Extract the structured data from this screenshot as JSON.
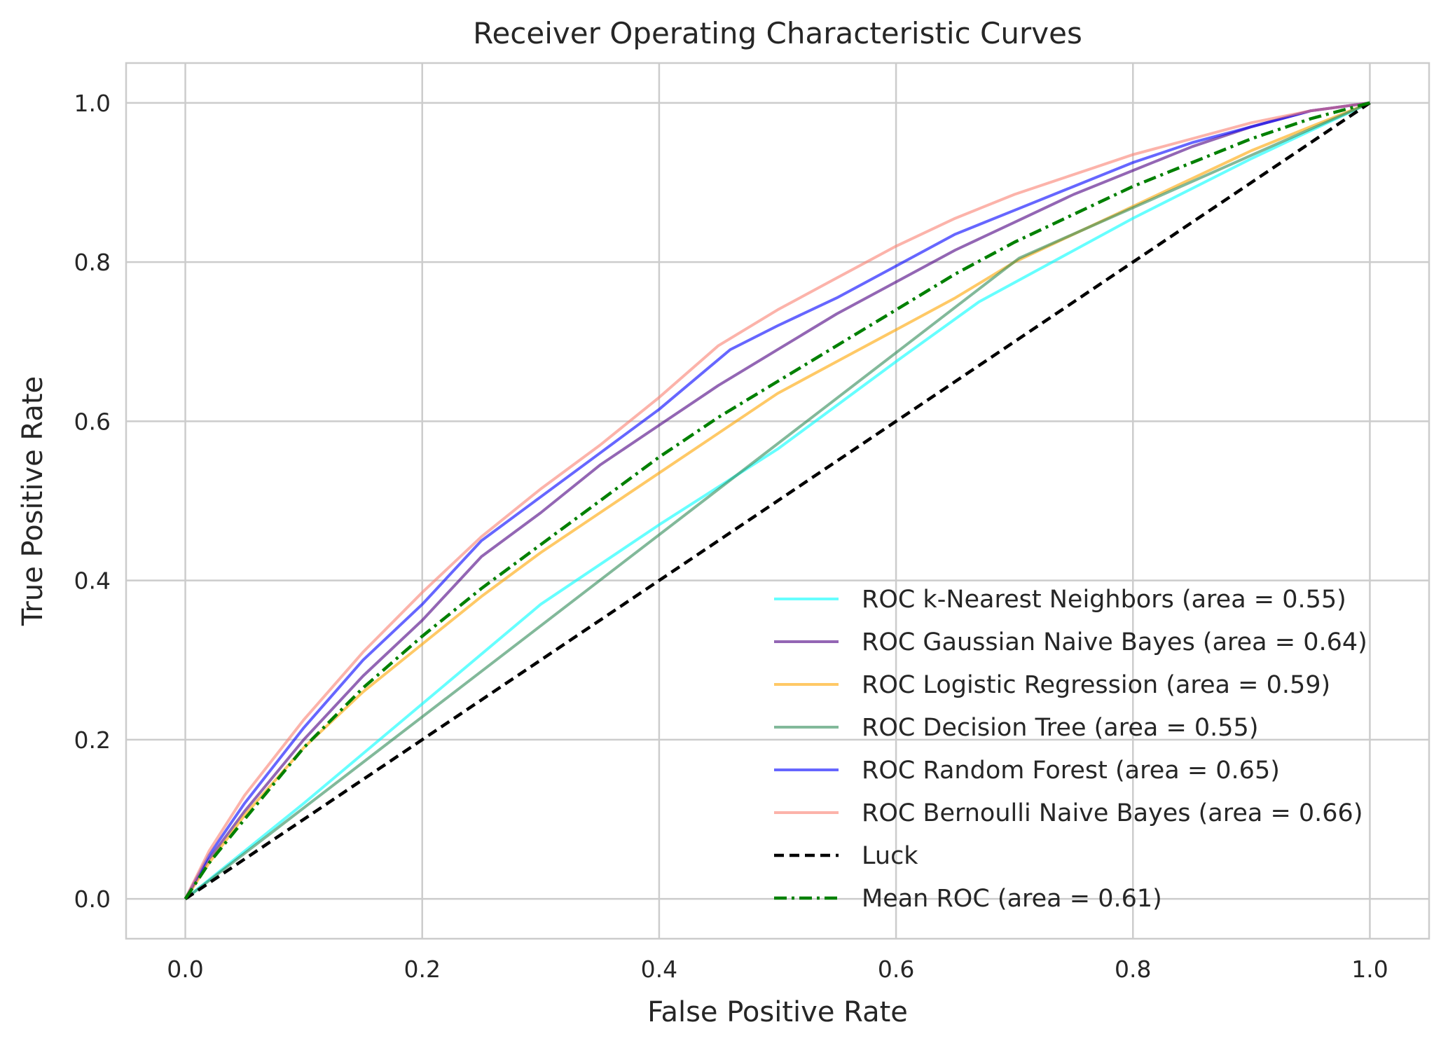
{
  "chart_data": {
    "type": "line",
    "title": "Receiver Operating Characteristic Curves",
    "xlabel": "False Positive Rate",
    "ylabel": "True Positive Rate",
    "xlim": [
      -0.05,
      1.05
    ],
    "ylim": [
      -0.05,
      1.05
    ],
    "x_ticks": [
      0.0,
      0.2,
      0.4,
      0.6,
      0.8,
      1.0
    ],
    "y_ticks": [
      0.0,
      0.2,
      0.4,
      0.6,
      0.8,
      1.0
    ],
    "x_tick_labels": [
      "0.0",
      "0.2",
      "0.4",
      "0.6",
      "0.8",
      "1.0"
    ],
    "y_tick_labels": [
      "0.0",
      "0.2",
      "0.4",
      "0.6",
      "0.8",
      "1.0"
    ],
    "grid": true,
    "legend_position": "lower-right",
    "series": [
      {
        "name": "ROC k-Nearest Neighbors (area = 0.55)",
        "color": "#00ffff",
        "opacity": 0.6,
        "dash": "solid",
        "x": [
          0.0,
          0.1,
          0.2,
          0.3,
          0.4,
          0.5,
          0.6,
          0.67,
          0.8,
          0.9,
          1.0
        ],
        "y": [
          0.0,
          0.12,
          0.245,
          0.37,
          0.47,
          0.565,
          0.675,
          0.75,
          0.855,
          0.93,
          1.0
        ]
      },
      {
        "name": "ROC Gaussian Naive Bayes (area = 0.64)",
        "color": "#4b0082",
        "opacity": 0.6,
        "dash": "solid",
        "x": [
          0.0,
          0.02,
          0.05,
          0.1,
          0.15,
          0.2,
          0.25,
          0.3,
          0.35,
          0.4,
          0.45,
          0.5,
          0.55,
          0.6,
          0.65,
          0.7,
          0.75,
          0.8,
          0.85,
          0.9,
          0.95,
          1.0
        ],
        "y": [
          0.0,
          0.05,
          0.11,
          0.2,
          0.28,
          0.35,
          0.43,
          0.485,
          0.545,
          0.595,
          0.645,
          0.69,
          0.735,
          0.775,
          0.815,
          0.85,
          0.885,
          0.915,
          0.945,
          0.97,
          0.99,
          1.0
        ]
      },
      {
        "name": "ROC Logistic Regression (area = 0.59)",
        "color": "#ffa500",
        "opacity": 0.6,
        "dash": "solid",
        "x": [
          0.0,
          0.02,
          0.05,
          0.1,
          0.15,
          0.2,
          0.25,
          0.3,
          0.35,
          0.4,
          0.45,
          0.5,
          0.55,
          0.6,
          0.65,
          0.7,
          0.75,
          0.8,
          0.85,
          0.9,
          0.95,
          1.0
        ],
        "y": [
          0.0,
          0.045,
          0.105,
          0.19,
          0.26,
          0.32,
          0.38,
          0.435,
          0.485,
          0.535,
          0.585,
          0.635,
          0.675,
          0.715,
          0.755,
          0.8,
          0.835,
          0.87,
          0.905,
          0.94,
          0.97,
          1.0
        ]
      },
      {
        "name": "ROC Decision Tree (area = 0.55)",
        "color": "#2e8b57",
        "opacity": 0.6,
        "dash": "solid",
        "x": [
          0.0,
          0.704,
          1.0
        ],
        "y": [
          0.0,
          0.805,
          1.0
        ]
      },
      {
        "name": "ROC Random Forest (area = 0.65)",
        "color": "#0000ff",
        "opacity": 0.6,
        "dash": "solid",
        "x": [
          0.0,
          0.02,
          0.05,
          0.1,
          0.15,
          0.2,
          0.25,
          0.3,
          0.35,
          0.4,
          0.46,
          0.5,
          0.55,
          0.6,
          0.65,
          0.7,
          0.75,
          0.8,
          0.85,
          0.9,
          0.95,
          1.0
        ],
        "y": [
          0.0,
          0.055,
          0.12,
          0.215,
          0.3,
          0.37,
          0.45,
          0.505,
          0.56,
          0.615,
          0.69,
          0.72,
          0.755,
          0.795,
          0.835,
          0.865,
          0.895,
          0.925,
          0.95,
          0.97,
          0.99,
          1.0
        ]
      },
      {
        "name": "ROC Bernoulli Naive Bayes (area = 0.66)",
        "color": "#fa8072",
        "opacity": 0.6,
        "dash": "solid",
        "x": [
          0.0,
          0.02,
          0.05,
          0.1,
          0.15,
          0.2,
          0.25,
          0.3,
          0.35,
          0.4,
          0.45,
          0.5,
          0.55,
          0.6,
          0.65,
          0.7,
          0.75,
          0.8,
          0.85,
          0.9,
          0.95,
          1.0
        ],
        "y": [
          0.0,
          0.06,
          0.13,
          0.225,
          0.31,
          0.385,
          0.455,
          0.515,
          0.57,
          0.63,
          0.695,
          0.74,
          0.78,
          0.82,
          0.855,
          0.885,
          0.91,
          0.935,
          0.955,
          0.975,
          0.99,
          1.0
        ]
      },
      {
        "name": "Luck",
        "color": "#000000",
        "opacity": 1.0,
        "dash": "dashed",
        "x": [
          0.0,
          1.0
        ],
        "y": [
          0.0,
          1.0
        ]
      },
      {
        "name": "Mean ROC (area = 0.61)",
        "color": "#008000",
        "opacity": 1.0,
        "dash": "dashdot",
        "x": [
          0.0,
          0.02,
          0.05,
          0.1,
          0.15,
          0.2,
          0.25,
          0.3,
          0.35,
          0.4,
          0.45,
          0.5,
          0.55,
          0.6,
          0.65,
          0.7,
          0.75,
          0.8,
          0.85,
          0.9,
          0.95,
          1.0
        ],
        "y": [
          0.0,
          0.045,
          0.1,
          0.19,
          0.265,
          0.33,
          0.39,
          0.445,
          0.5,
          0.555,
          0.605,
          0.65,
          0.695,
          0.74,
          0.785,
          0.825,
          0.86,
          0.895,
          0.925,
          0.955,
          0.98,
          1.0
        ]
      }
    ]
  }
}
